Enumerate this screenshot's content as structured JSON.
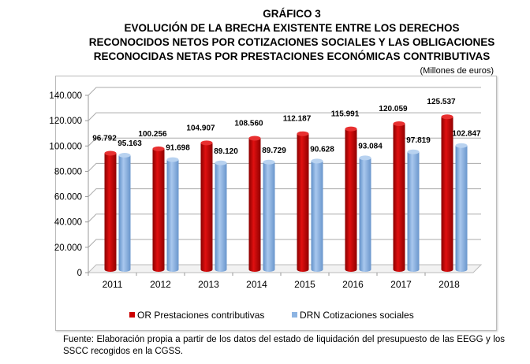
{
  "title_lines": [
    "GRÁFICO 3",
    "EVOLUCIÓN DE LA BRECHA EXISTENTE ENTRE LOS DERECHOS",
    "RECONOCIDOS NETOS POR COTIZACIONES SOCIALES Y LAS OBLIGACIONES",
    "RECONOCIDAS NETAS POR PRESTACIONES ECONÓMICAS CONTRIBUTIVAS"
  ],
  "units": "(Millones de euros)",
  "footnote": "Fuente: Elaboración propia a partir de los datos del estado de liquidación del presupuesto de las EEGG y los SSCC recogidos en la CGSS.",
  "chart_data": {
    "type": "bar",
    "categories": [
      "2011",
      "2012",
      "2013",
      "2014",
      "2015",
      "2016",
      "2017",
      "2018"
    ],
    "series": [
      {
        "name": "OR Prestaciones contributivas",
        "color": "#cc0000",
        "values": [
          96792,
          100256,
          104907,
          108560,
          112187,
          115991,
          120059,
          125537
        ],
        "labels": [
          "96.792",
          "100.256",
          "104.907",
          "108.560",
          "112.187",
          "115.991",
          "120.059",
          "125.537"
        ]
      },
      {
        "name": "DRN Cotizaciones sociales",
        "color": "#8db4e2",
        "values": [
          95163,
          91698,
          89120,
          89729,
          90628,
          93084,
          97819,
          102847
        ],
        "labels": [
          "95.163",
          "91.698",
          "89.120",
          "89.729",
          "90.628",
          "93.084",
          "97.819",
          "102.847"
        ]
      }
    ],
    "ylim": [
      0,
      140000
    ],
    "yticks": [
      0,
      20000,
      40000,
      60000,
      80000,
      100000,
      120000,
      140000
    ],
    "ytick_labels": [
      "0",
      "20.000",
      "40.000",
      "60.000",
      "80.000",
      "100.000",
      "120.000",
      "140.000"
    ],
    "grid": true,
    "legend": "bottom",
    "style": "3d-cylinder"
  }
}
